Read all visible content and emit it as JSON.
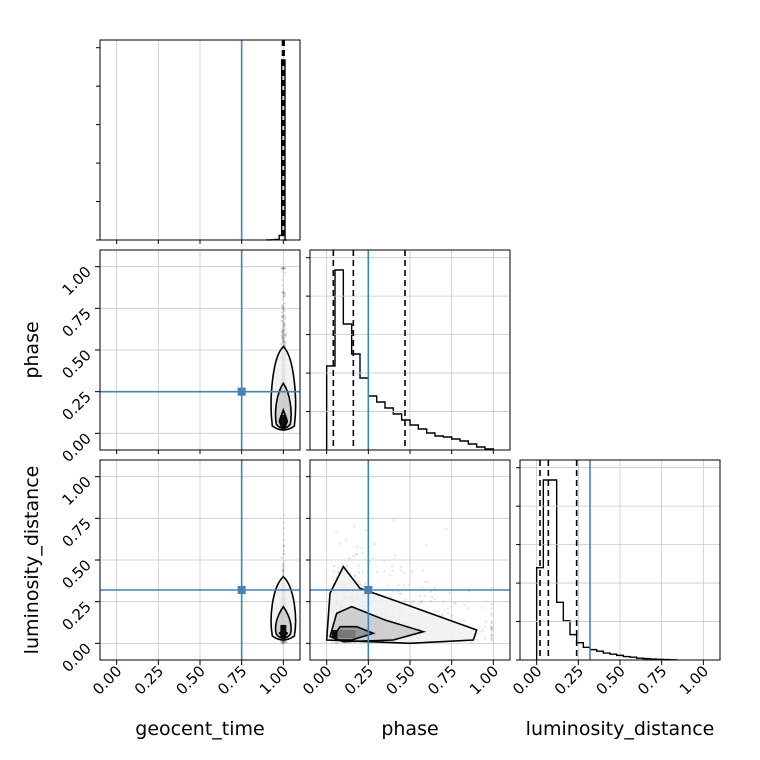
{
  "chart_data": {
    "type": "corner",
    "parameters": [
      "geocent_time",
      "phase",
      "luminosity_distance"
    ],
    "axis_range": [
      -0.1,
      1.1
    ],
    "tick_labels": [
      "0.00",
      "0.25",
      "0.50",
      "0.75",
      "1.00"
    ],
    "grid": true,
    "colors": {
      "truth": "#4682b4",
      "hist": "#000000",
      "samples": "#7f7f7f"
    },
    "truths": {
      "geocent_time": 0.75,
      "phase": 0.25,
      "luminosity_distance": 0.32
    },
    "quantiles": {
      "geocent_time": [
        0.995,
        1.0,
        1.005
      ],
      "phase": [
        0.04,
        0.16,
        0.47
      ],
      "luminosity_distance": [
        0.02,
        0.07,
        0.24
      ]
    },
    "histograms": {
      "geocent_time": {
        "bin_edges": [
          0.9,
          0.925,
          0.95,
          0.975,
          0.99,
          1.01,
          1.02
        ],
        "counts": [
          0.2,
          1,
          3,
          25,
          1000,
          0
        ]
      },
      "phase": {
        "bin_edges": [
          0.0,
          0.05,
          0.1,
          0.15,
          0.2,
          0.25,
          0.3,
          0.35,
          0.4,
          0.45,
          0.5,
          0.55,
          0.6,
          0.65,
          0.7,
          0.75,
          0.8,
          0.85,
          0.9,
          0.95,
          1.0
        ],
        "counts": [
          420,
          900,
          630,
          480,
          360,
          270,
          240,
          210,
          180,
          150,
          125,
          105,
          85,
          70,
          65,
          55,
          45,
          30,
          15,
          5
        ]
      },
      "luminosity_distance": {
        "bin_edges": [
          0.0,
          0.04,
          0.08,
          0.12,
          0.16,
          0.2,
          0.24,
          0.28,
          0.32,
          0.36,
          0.4,
          0.44,
          0.48,
          0.52,
          0.56,
          0.6,
          0.64,
          0.68,
          0.72,
          0.76,
          0.8,
          0.84
        ],
        "counts": [
          400,
          780,
          780,
          250,
          170,
          110,
          75,
          55,
          45,
          38,
          30,
          25,
          20,
          15,
          12,
          8,
          6,
          4,
          3,
          2,
          1
        ]
      }
    },
    "pairs": [
      {
        "x": "geocent_time",
        "y": "phase",
        "contour_levels": 3
      },
      {
        "x": "geocent_time",
        "y": "luminosity_distance",
        "contour_levels": 3
      },
      {
        "x": "phase",
        "y": "luminosity_distance",
        "contour_levels": 3
      }
    ]
  }
}
